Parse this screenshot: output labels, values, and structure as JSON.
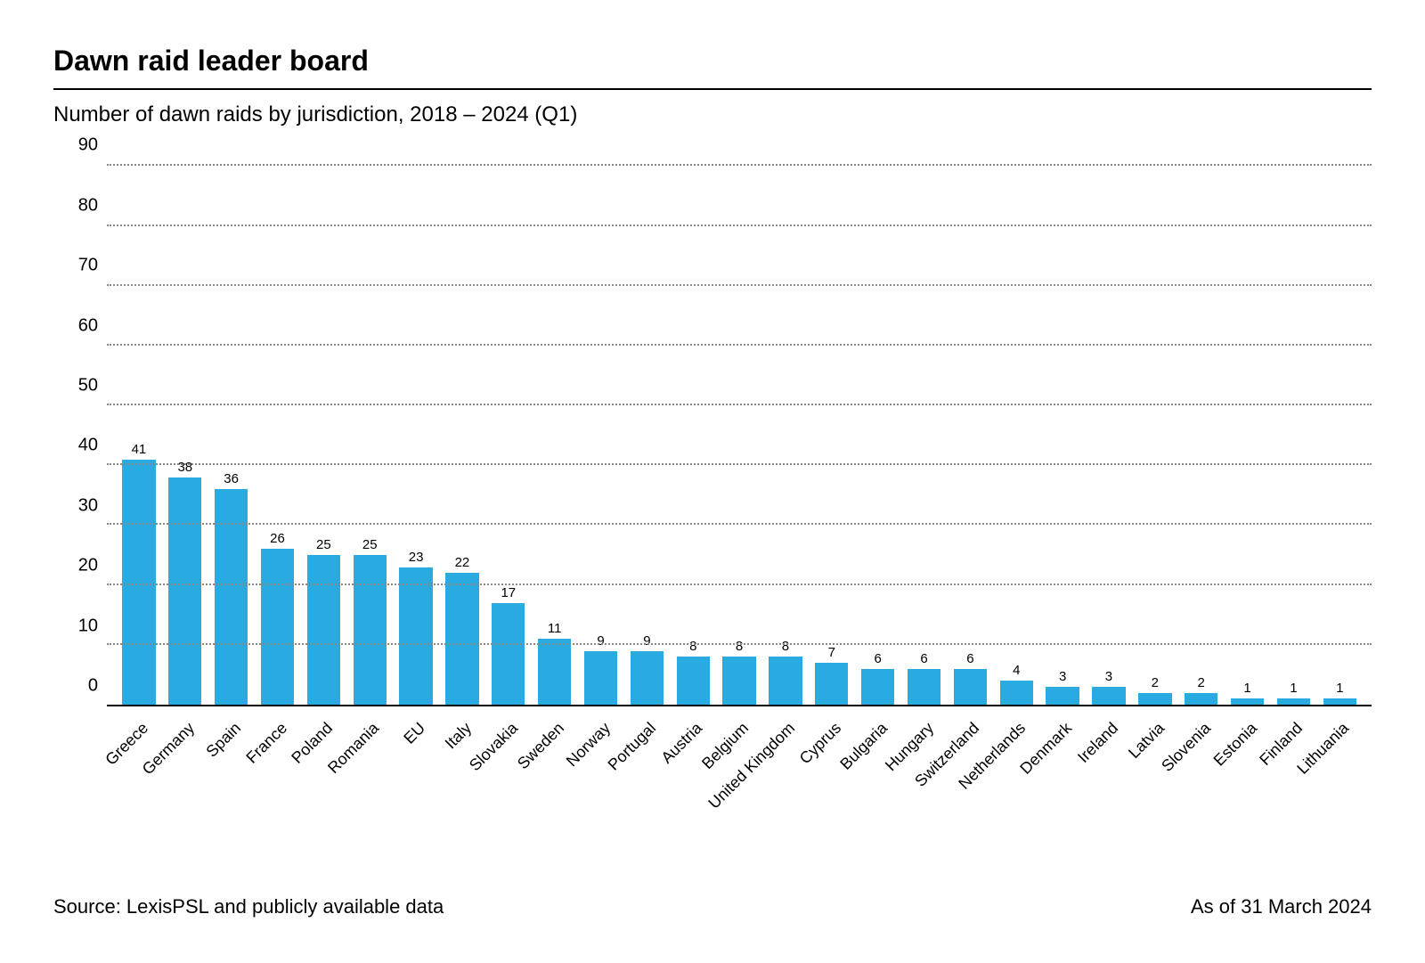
{
  "title": "Dawn raid leader board",
  "subtitle": "Number of dawn raids by jurisdiction, 2018 – 2024 (Q1)",
  "source": "Source: LexisPSL and publicly available data",
  "asof": "As of 31 March 2024",
  "chart": {
    "type": "bar",
    "bar_color": "#29abe2",
    "background_color": "#ffffff",
    "grid_color": "#888888",
    "axis_color": "#000000",
    "title_fontsize": 32,
    "subtitle_fontsize": 24,
    "tick_fontsize": 20,
    "datalabel_fontsize": 15,
    "xlabel_fontsize": 18,
    "xlabel_rotation_deg": -45,
    "bar_width_ratio": 0.72,
    "ylim": [
      0,
      92
    ],
    "yticks": [
      0,
      10,
      20,
      30,
      40,
      50,
      60,
      70,
      80,
      90
    ],
    "categories": [
      "Greece",
      "Germany",
      "Spain",
      "France",
      "Poland",
      "Romania",
      "EU",
      "Italy",
      "Slovakia",
      "Sweden",
      "Norway",
      "Portugal",
      "Austria",
      "Belgium",
      "United Kingdom",
      "Cyprus",
      "Bulgaria",
      "Hungary",
      "Switzerland",
      "Netherlands",
      "Denmark",
      "Ireland",
      "Latvia",
      "Slovenia",
      "Estonia",
      "Finland",
      "Lithuania"
    ],
    "values": [
      41,
      38,
      36,
      26,
      25,
      25,
      23,
      22,
      17,
      11,
      9,
      9,
      8,
      8,
      8,
      7,
      6,
      6,
      6,
      4,
      3,
      3,
      2,
      2,
      1,
      1,
      1
    ]
  }
}
